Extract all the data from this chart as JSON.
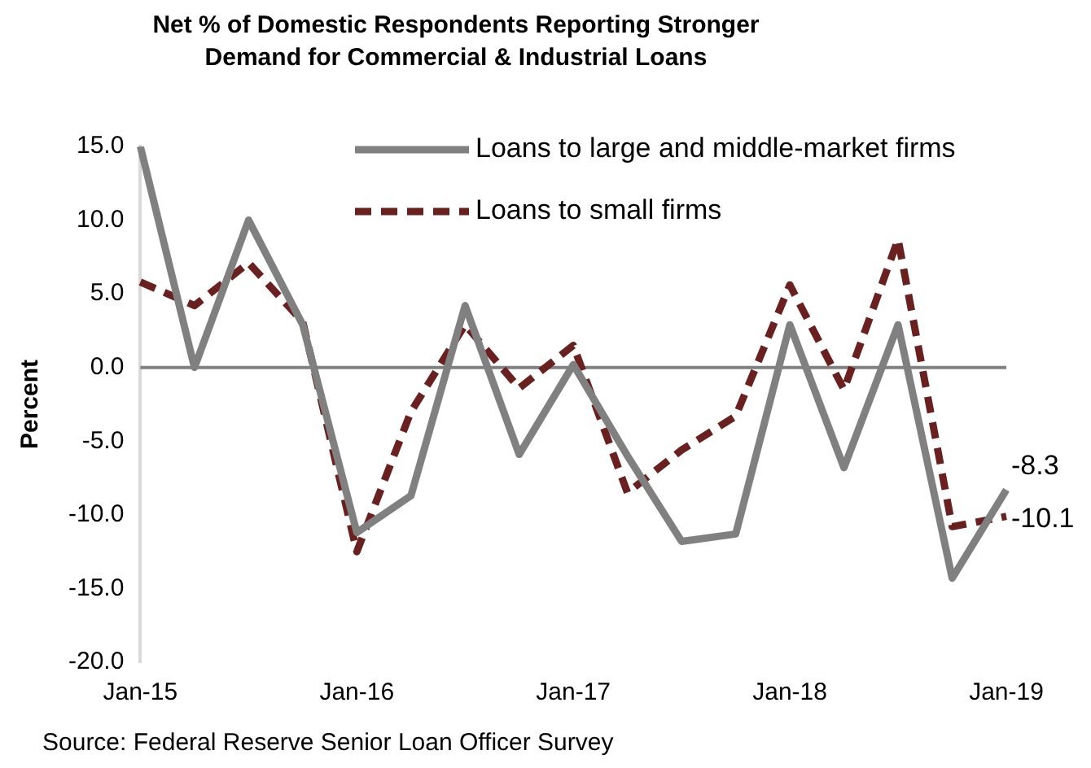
{
  "chart_data": {
    "type": "line",
    "title": "Net % of Domestic Respondents Reporting Stronger Demand for Commercial & Industrial Loans",
    "ylabel": "Percent",
    "categories": [
      "Jan-15",
      null,
      null,
      null,
      "Jan-16",
      null,
      null,
      null,
      "Jan-17",
      null,
      null,
      null,
      "Jan-18",
      null,
      null,
      null,
      "Jan-19"
    ],
    "series": [
      {
        "name": "Loans to large and middle-market firms",
        "color": "#808080",
        "line_style": "solid",
        "values": [
          15,
          0,
          10,
          2.9,
          -11.2,
          -8.7,
          4.2,
          -5.9,
          0.2,
          -6.0,
          -11.8,
          -11.3,
          2.9,
          -6.8,
          2.9,
          -14.3,
          -8.3
        ],
        "value_labels": [
          null,
          null,
          null,
          null,
          null,
          null,
          null,
          null,
          null,
          null,
          null,
          null,
          null,
          null,
          null,
          null,
          "-8.3"
        ]
      },
      {
        "name": "Loans to small firms",
        "color": "#6b2020",
        "line_style": "dashed",
        "values": [
          5.8,
          4.2,
          7.1,
          3.1,
          -12.5,
          -3.0,
          2.9,
          -1.4,
          1.5,
          -8.5,
          -5.6,
          -3.3,
          5.6,
          -1.5,
          8.7,
          -10.8,
          -10.1
        ],
        "value_labels": [
          null,
          null,
          null,
          null,
          null,
          null,
          null,
          null,
          null,
          null,
          null,
          null,
          null,
          null,
          null,
          null,
          "-10.1"
        ]
      }
    ],
    "ylim": [
      -20,
      15
    ],
    "yticks": [
      {
        "value": -20,
        "label": "-20.0"
      },
      {
        "value": -15,
        "label": "-15.0"
      },
      {
        "value": -10,
        "label": "-10.0"
      },
      {
        "value": -5,
        "label": "-5.0"
      },
      {
        "value": 0,
        "label": "0.0"
      },
      {
        "value": 5,
        "label": "5.0"
      },
      {
        "value": 10,
        "label": "10.0"
      },
      {
        "value": 15,
        "label": "15.0"
      }
    ],
    "ref_lines": [
      {
        "axis": "y",
        "value": 0,
        "color": "#808080"
      }
    ],
    "grid": false,
    "legend": "top right",
    "marker": "none",
    "annotations": [
      "Source: Federal Reserve Senior Loan Officer Survey"
    ]
  }
}
